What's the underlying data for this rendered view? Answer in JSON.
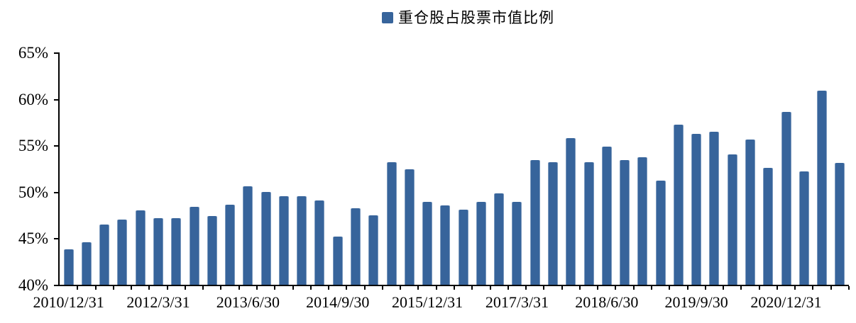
{
  "legend": {
    "label": "重仓股占股票市值比例"
  },
  "chart_data": {
    "type": "bar",
    "title": "",
    "series_name": "重仓股占股票市值比例",
    "categories": [
      "2010/12/31",
      "2011/3/31",
      "2011/6/30",
      "2011/9/30",
      "2011/12/31",
      "2012/3/31",
      "2012/6/30",
      "2012/9/30",
      "2012/12/31",
      "2013/3/31",
      "2013/6/30",
      "2013/9/30",
      "2013/12/31",
      "2014/3/31",
      "2014/6/30",
      "2014/9/30",
      "2014/12/31",
      "2015/3/31",
      "2015/6/30",
      "2015/9/30",
      "2015/12/31",
      "2016/3/31",
      "2016/6/30",
      "2016/9/30",
      "2016/12/31",
      "2017/3/31",
      "2017/6/30",
      "2017/9/30",
      "2017/12/31",
      "2018/3/31",
      "2018/6/30",
      "2018/9/30",
      "2018/12/31",
      "2019/3/31",
      "2019/6/30",
      "2019/9/30",
      "2019/12/31",
      "2020/3/31",
      "2020/6/30",
      "2020/9/30",
      "2020/12/31",
      "2021/3/31",
      "2021/6/30",
      "2021/9/30"
    ],
    "values": [
      43.8,
      44.6,
      46.5,
      47.0,
      48.0,
      47.2,
      47.2,
      48.4,
      47.4,
      48.6,
      50.6,
      50.0,
      49.5,
      49.5,
      49.1,
      45.2,
      48.2,
      47.5,
      53.2,
      52.4,
      48.9,
      48.5,
      48.1,
      48.9,
      49.8,
      48.9,
      53.4,
      53.2,
      55.8,
      53.2,
      54.9,
      53.4,
      53.7,
      51.2,
      57.2,
      56.2,
      56.5,
      54.0,
      55.6,
      52.6,
      58.6,
      52.2,
      60.9,
      53.1
    ],
    "x_tick_labels": [
      "2010/12/31",
      "2012/3/31",
      "2013/6/30",
      "2014/9/30",
      "2015/12/31",
      "2017/3/31",
      "2018/6/30",
      "2019/9/30",
      "2020/12/31"
    ],
    "x_label_every": 5,
    "y_tick_labels": [
      "65%",
      "60%",
      "55%",
      "50%",
      "45%",
      "40%"
    ],
    "ylim": [
      40,
      65
    ],
    "y_step": 5,
    "grid": false,
    "legend_position": "top-center",
    "bar_color": "#37649B",
    "axis_color": "#000000"
  }
}
